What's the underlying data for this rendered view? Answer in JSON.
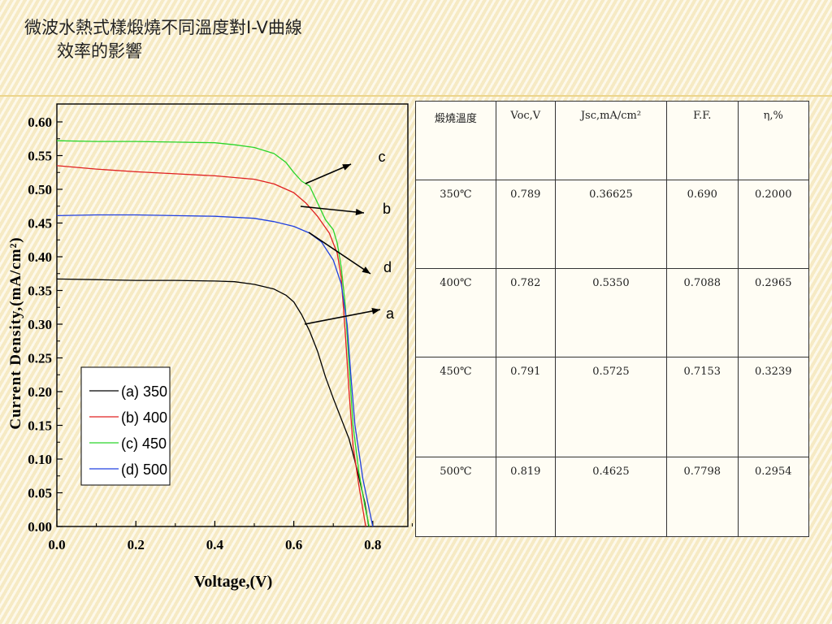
{
  "slide": {
    "title_line1": "微波水熱式樣煅燒不同溫度對I-V曲線",
    "title_line2": "效率的影響"
  },
  "table": {
    "headers": [
      "煅燒溫度",
      "Voc,V",
      "Jsc,mA/cm²",
      "F.F.",
      "η,%"
    ],
    "rows": [
      [
        "350℃",
        "0.789",
        "0.36625",
        "0.690",
        "0.2000"
      ],
      [
        "400℃",
        "0.782",
        "0.5350",
        "0.7088",
        "0.2965"
      ],
      [
        "450℃",
        "0.791",
        "0.5725",
        "0.7153",
        "0.3239"
      ],
      [
        "500℃",
        "0.819",
        "0.4625",
        "0.7798",
        "0.2954"
      ]
    ]
  },
  "chart_data": {
    "type": "line",
    "title": "",
    "xlabel": "Voltage,(V)",
    "ylabel": "Current Density,(mA/cm²)",
    "xlim": [
      0.0,
      0.9
    ],
    "ylim": [
      0.0,
      0.62
    ],
    "x_ticks": [
      "0.0",
      "0.2",
      "0.4",
      "0.6",
      "0.8"
    ],
    "y_ticks": [
      "0.00",
      "0.05",
      "0.10",
      "0.15",
      "0.20",
      "0.25",
      "0.30",
      "0.35",
      "0.40",
      "0.45",
      "0.50",
      "0.55",
      "0.60"
    ],
    "legend_position": "lower-left",
    "series": [
      {
        "name": "(a) 350",
        "label": "a",
        "color": "#000000",
        "points": [
          [
            0.0,
            0.367
          ],
          [
            0.1,
            0.366
          ],
          [
            0.2,
            0.365
          ],
          [
            0.3,
            0.365
          ],
          [
            0.4,
            0.364
          ],
          [
            0.45,
            0.363
          ],
          [
            0.5,
            0.359
          ],
          [
            0.55,
            0.352
          ],
          [
            0.58,
            0.343
          ],
          [
            0.6,
            0.333
          ],
          [
            0.62,
            0.314
          ],
          [
            0.64,
            0.29
          ],
          [
            0.66,
            0.26
          ],
          [
            0.68,
            0.222
          ],
          [
            0.7,
            0.19
          ],
          [
            0.72,
            0.16
          ],
          [
            0.74,
            0.13
          ],
          [
            0.76,
            0.085
          ],
          [
            0.78,
            0.035
          ],
          [
            0.79,
            0.0
          ]
        ]
      },
      {
        "name": "(b) 400",
        "label": "b",
        "color": "#e02020",
        "points": [
          [
            0.0,
            0.535
          ],
          [
            0.1,
            0.53
          ],
          [
            0.2,
            0.526
          ],
          [
            0.3,
            0.523
          ],
          [
            0.4,
            0.52
          ],
          [
            0.5,
            0.515
          ],
          [
            0.55,
            0.508
          ],
          [
            0.6,
            0.495
          ],
          [
            0.63,
            0.48
          ],
          [
            0.66,
            0.46
          ],
          [
            0.69,
            0.435
          ],
          [
            0.71,
            0.405
          ],
          [
            0.72,
            0.37
          ],
          [
            0.73,
            0.29
          ],
          [
            0.74,
            0.2
          ],
          [
            0.75,
            0.12
          ],
          [
            0.765,
            0.06
          ],
          [
            0.782,
            0.0
          ]
        ]
      },
      {
        "name": "(c) 450",
        "label": "c",
        "color": "#2ad52a",
        "points": [
          [
            0.0,
            0.572
          ],
          [
            0.1,
            0.571
          ],
          [
            0.2,
            0.571
          ],
          [
            0.3,
            0.57
          ],
          [
            0.4,
            0.569
          ],
          [
            0.45,
            0.566
          ],
          [
            0.5,
            0.562
          ],
          [
            0.55,
            0.553
          ],
          [
            0.58,
            0.54
          ],
          [
            0.6,
            0.525
          ],
          [
            0.62,
            0.512
          ],
          [
            0.64,
            0.505
          ],
          [
            0.66,
            0.48
          ],
          [
            0.68,
            0.455
          ],
          [
            0.7,
            0.44
          ],
          [
            0.71,
            0.42
          ],
          [
            0.72,
            0.385
          ],
          [
            0.73,
            0.33
          ],
          [
            0.74,
            0.24
          ],
          [
            0.75,
            0.15
          ],
          [
            0.765,
            0.08
          ],
          [
            0.78,
            0.03
          ],
          [
            0.791,
            0.0
          ]
        ]
      },
      {
        "name": "(d) 500",
        "label": "d",
        "color": "#2040e0",
        "points": [
          [
            0.0,
            0.461
          ],
          [
            0.1,
            0.462
          ],
          [
            0.2,
            0.462
          ],
          [
            0.3,
            0.461
          ],
          [
            0.4,
            0.46
          ],
          [
            0.5,
            0.457
          ],
          [
            0.55,
            0.452
          ],
          [
            0.6,
            0.445
          ],
          [
            0.64,
            0.435
          ],
          [
            0.67,
            0.422
          ],
          [
            0.7,
            0.395
          ],
          [
            0.72,
            0.36
          ],
          [
            0.735,
            0.3
          ],
          [
            0.745,
            0.22
          ],
          [
            0.755,
            0.15
          ],
          [
            0.775,
            0.07
          ],
          [
            0.8,
            0.0
          ]
        ]
      }
    ]
  }
}
